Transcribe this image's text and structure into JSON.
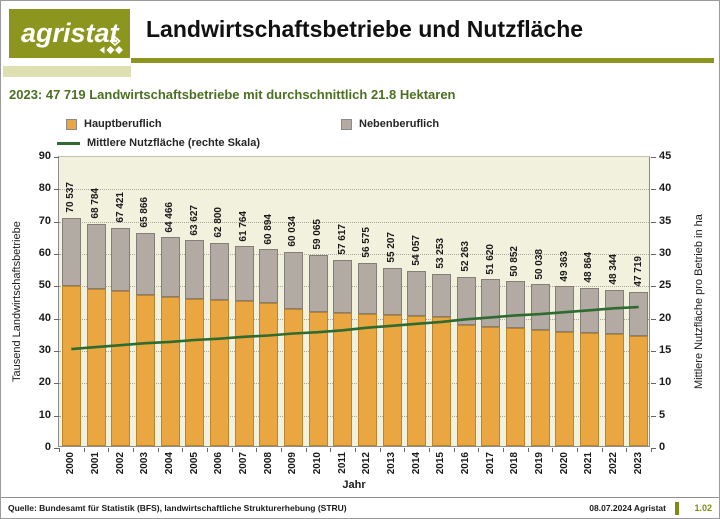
{
  "header": {
    "logo_text": "agristat",
    "title": "Landwirtschaftsbetriebe und Nutzfläche"
  },
  "subtitle": "2023: 47 719 Landwirtschaftsbetriebe mit durchschnittlich 21.8 Hektaren",
  "legend": {
    "hauptberuflich": "Hauptberuflich",
    "nebenberuflich": "Nebenberuflich",
    "line": "Mittlere Nutzfläche (rechte Skala)"
  },
  "chart_data": {
    "type": "stacked-bar+line",
    "categories": [
      "2000",
      "2001",
      "2002",
      "2003",
      "2004",
      "2005",
      "2006",
      "2007",
      "2008",
      "2009",
      "2010",
      "2011",
      "2012",
      "2013",
      "2014",
      "2015",
      "2016",
      "2017",
      "2018",
      "2019",
      "2020",
      "2021",
      "2022",
      "2023"
    ],
    "series": [
      {
        "name": "Hauptberuflich",
        "role": "bar-stack-bottom",
        "unit": "thousand",
        "values": [
          49.5,
          48.5,
          48.0,
          46.8,
          46.0,
          45.6,
          45.1,
          44.7,
          44.3,
          42.4,
          41.6,
          41.1,
          40.8,
          40.5,
          40.2,
          39.9,
          37.5,
          36.9,
          36.5,
          36.0,
          35.4,
          35.0,
          34.5,
          34.0
        ]
      },
      {
        "name": "Nebenberuflich",
        "role": "bar-stack-top",
        "unit": "thousand",
        "values": [
          21.0,
          20.3,
          19.4,
          19.1,
          18.5,
          18.0,
          17.7,
          17.1,
          16.6,
          17.6,
          17.5,
          16.5,
          15.8,
          14.7,
          13.9,
          13.4,
          14.8,
          14.7,
          14.4,
          14.0,
          14.0,
          13.9,
          13.8,
          13.7
        ]
      },
      {
        "name": "Mittlere Nutzfläche (rechte Skala)",
        "role": "line",
        "axis": "right",
        "unit": "ha",
        "values": [
          15.3,
          15.6,
          15.9,
          16.2,
          16.4,
          16.7,
          16.9,
          17.2,
          17.4,
          17.7,
          17.9,
          18.2,
          18.6,
          18.9,
          19.2,
          19.5,
          19.9,
          20.2,
          20.5,
          20.7,
          21.0,
          21.3,
          21.6,
          21.8
        ]
      }
    ],
    "bar_totals": [
      70537,
      68784,
      67421,
      65866,
      64466,
      63627,
      62800,
      61764,
      60894,
      60034,
      59065,
      57617,
      56575,
      55207,
      54057,
      53253,
      52263,
      51620,
      50852,
      50038,
      49363,
      48864,
      48344,
      47719
    ],
    "bar_total_labels": [
      "70 537",
      "68 784",
      "67 421",
      "65 866",
      "64 466",
      "63 627",
      "62 800",
      "61 764",
      "60 894",
      "60 034",
      "59 065",
      "57 617",
      "56 575",
      "55 207",
      "54 057",
      "53 253",
      "52 263",
      "51 620",
      "50 852",
      "50 038",
      "49 363",
      "48 864",
      "48 344",
      "47 719"
    ],
    "left_axis": {
      "title": "Tausend Landwirtschaftsbetriebe",
      "min": 0,
      "max": 90,
      "step": 10
    },
    "right_axis": {
      "title": "Mittlere Nutzfläche pro Betrieb in ha",
      "min": 0,
      "max": 45,
      "step": 5
    },
    "xlabel": "Jahr",
    "grid": true,
    "legend_position": "top",
    "colors": {
      "hauptberuflich": "#EAA640",
      "hauptberuflich_border": "#B9862F",
      "nebenberuflich": "#B3AAA3",
      "nebenberuflich_border": "#847E78",
      "line": "#2E6B30",
      "plot_bg": "#F2F1DE",
      "brand_olive": "#8C951D",
      "brand_olive_light": "#DFE0B2",
      "subtitle_green": "#4C7022",
      "version_olive": "#7E8C16"
    }
  },
  "footer": {
    "source": "Quelle: Bundesamt für Statistik (BFS), landwirtschaftliche Strukturerhebung (STRU)",
    "date": "08.07.2024 Agristat",
    "version": "1.02"
  }
}
